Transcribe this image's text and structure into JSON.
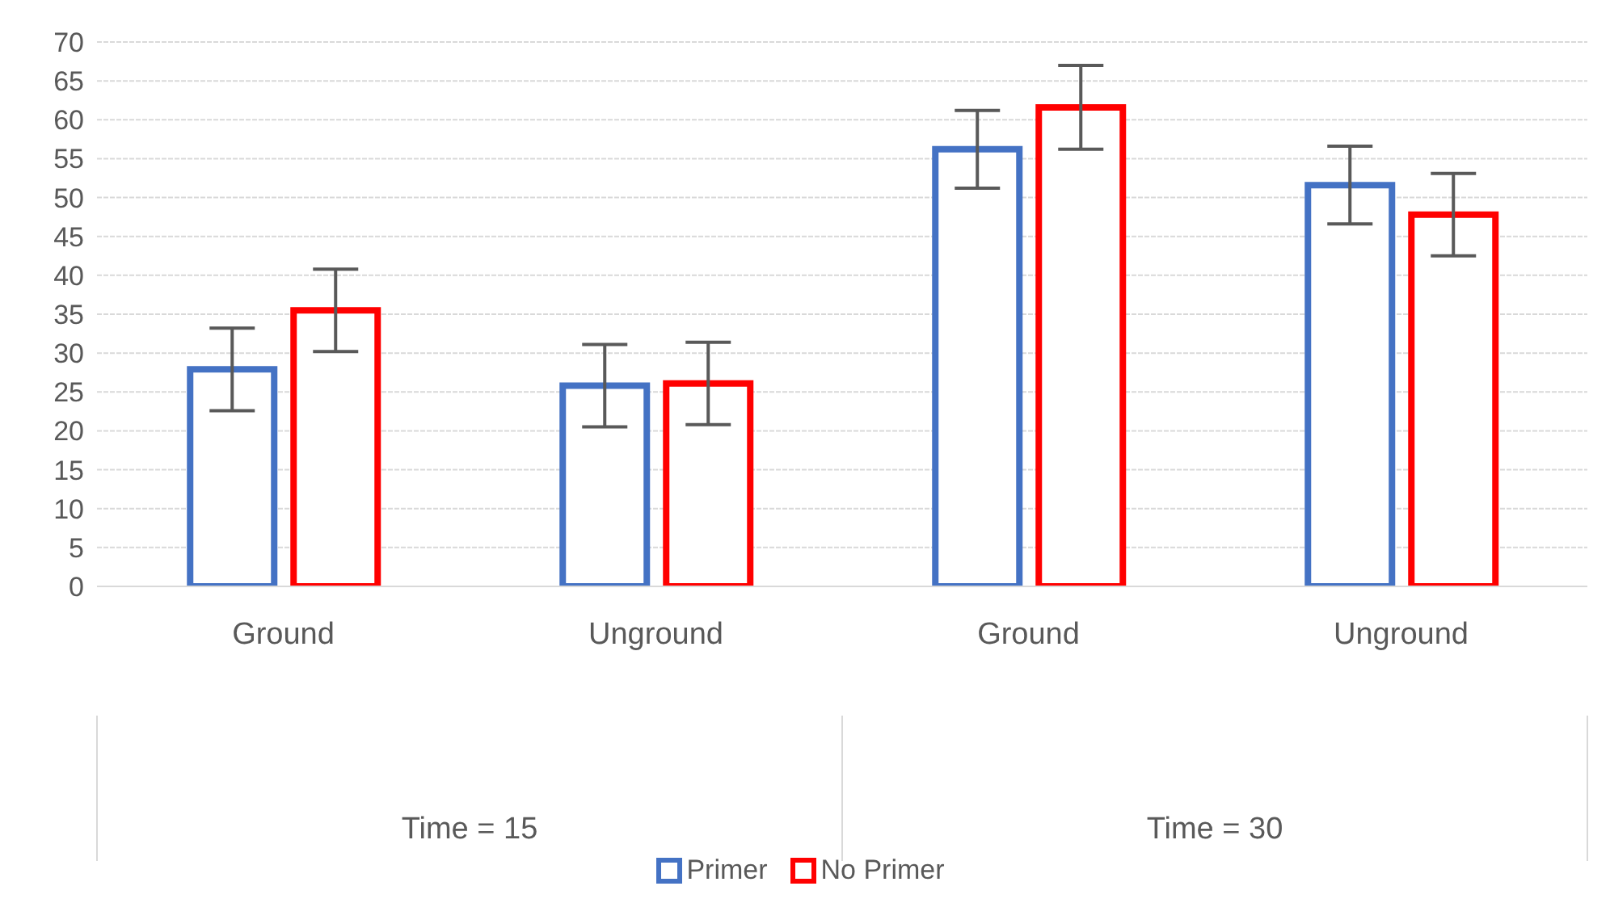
{
  "chart_data": {
    "type": "bar",
    "categories": [
      "Ground",
      "Unground",
      "Ground",
      "Unground"
    ],
    "series": [
      {
        "name": "Primer",
        "color": "#4472c4",
        "values": [
          27.9,
          25.8,
          56.2,
          51.6
        ],
        "errors": [
          5.3,
          5.3,
          5.0,
          5.0
        ]
      },
      {
        "name": "No Primer",
        "color": "#ff0000",
        "values": [
          35.5,
          26.1,
          61.6,
          47.8
        ],
        "errors": [
          5.3,
          5.3,
          5.4,
          5.3
        ]
      }
    ],
    "annotations": [
      "Time = 15",
      "Time = 30"
    ],
    "ylim": [
      0,
      70
    ],
    "yticks": [
      0,
      5,
      10,
      15,
      20,
      25,
      30,
      35,
      40,
      45,
      50,
      55,
      60,
      65,
      70
    ],
    "grid": "y",
    "legend": "bottom"
  }
}
